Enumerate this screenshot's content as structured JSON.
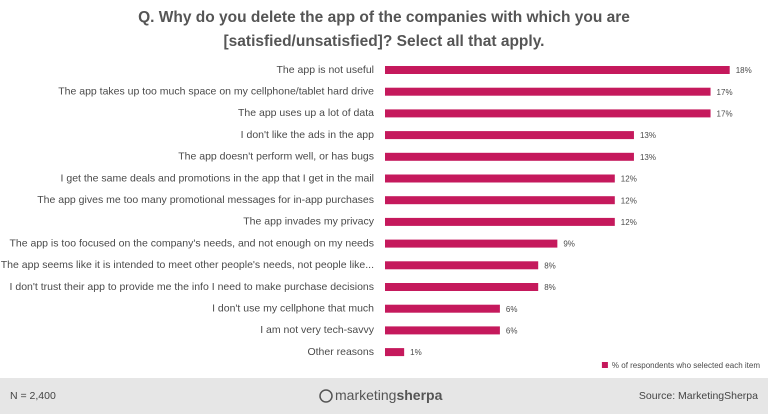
{
  "chart_data": {
    "type": "barh",
    "title": [
      "Q. Why do you delete the app of the companies with which you are",
      "[satisfied/unsatisfied]?  Select all that apply."
    ],
    "categories": [
      "The app is not useful",
      "The app takes up too much space on my cellphone/tablet hard drive",
      "The app uses up a lot of data",
      "I don't like the ads in the app",
      "The app doesn't perform well, or has bugs",
      "I get the same deals and promotions in the app that I get in the mail",
      "The app gives me too many promotional messages for in-app purchases",
      "The app invades my privacy",
      "The app is too focused on the company's needs, and not enough on my needs",
      "The app seems like it is intended to meet other people's needs, not people like...",
      "I don't trust their app to provide me the info I need to make purchase decisions",
      "I don't use my cellphone that much",
      "I am not very tech-savvy",
      "Other reasons"
    ],
    "series": [
      {
        "name": "% of respondents who selected each item",
        "color": "#c5195c",
        "values": [
          18,
          17,
          17,
          13,
          13,
          12,
          12,
          12,
          9,
          8,
          8,
          6,
          6,
          1
        ],
        "value_labels": [
          "18%",
          "17%",
          "17%",
          "13%",
          "13%",
          "12%",
          "12%",
          "12%",
          "9%",
          "8%",
          "8%",
          "6%",
          "6%",
          "1%"
        ]
      }
    ],
    "legend": "lower right"
  },
  "footer": {
    "note": "N = 2,400",
    "logo": [
      "marketing",
      "sherpa"
    ],
    "source": "Source: MarketingSherpa"
  }
}
